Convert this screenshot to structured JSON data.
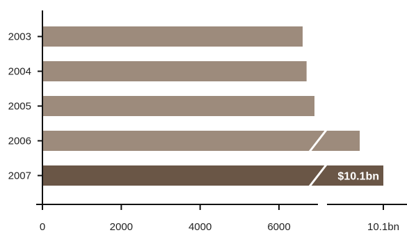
{
  "chart_data": {
    "type": "bar",
    "orientation": "horizontal",
    "categories": [
      "2003",
      "2004",
      "2005",
      "2006",
      "2007"
    ],
    "values": [
      6600,
      6700,
      6900,
      8800,
      10100
    ],
    "data_labels": [
      "",
      "",
      "",
      "",
      "$10.1bn"
    ],
    "xlim": [
      0,
      10100
    ],
    "axis_break": true,
    "x_ticks": [
      {
        "value": 0,
        "label": "0"
      },
      {
        "value": 2000,
        "label": "2000"
      },
      {
        "value": 4000,
        "label": "4000"
      },
      {
        "value": 6000,
        "label": "6000"
      },
      {
        "value": 10100,
        "label": "10.1bn"
      }
    ],
    "title": "",
    "xlabel": "",
    "ylabel": "",
    "grid": false,
    "colors": {
      "bar": "#9d8b7c",
      "highlight_bar": "#6a5646",
      "axis": "#111111"
    },
    "highlight_index": 4
  }
}
